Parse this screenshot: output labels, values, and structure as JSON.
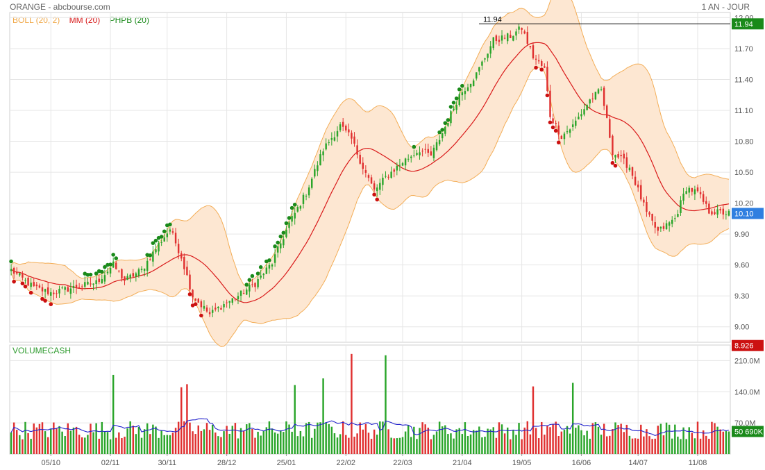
{
  "header": {
    "title": "ORANGE - abcbourse.com",
    "period": "1 AN - JOUR"
  },
  "legend": [
    {
      "label": "BOLL (20, 2)",
      "color": "#f0a848"
    },
    {
      "label": "MM (20)",
      "color": "#d81818"
    },
    {
      "label": "PHPB (20)",
      "color": "#1a8a1a"
    }
  ],
  "volume_title": "VOLUMECASH",
  "chart_data": [
    {
      "type": "candlestick",
      "title": "",
      "x_tick_labels": [
        "05/10",
        "02/11",
        "30/11",
        "28/12",
        "25/01",
        "22/02",
        "22/03",
        "21/04",
        "19/05",
        "16/06",
        "14/07",
        "11/08"
      ],
      "y_ticks": [
        9.0,
        9.3,
        9.6,
        9.9,
        10.2,
        10.5,
        10.8,
        11.1,
        11.4,
        11.7,
        12.0
      ],
      "y_tick_labels": [
        "9.00",
        "9.30",
        "9.60",
        "9.90",
        "10.20",
        "10.50",
        "10.80",
        "11.10",
        "11.40",
        "11.70",
        "12.00"
      ],
      "ylim": [
        8.85,
        12.05
      ],
      "high_label": "11.94",
      "high_value": 11.94,
      "last_label": "10.10",
      "last_value": 10.1,
      "low_label": "8.926",
      "low_value": 8.926,
      "n_bars": 254,
      "close_keyframes": [
        [
          0,
          9.55
        ],
        [
          8,
          9.38
        ],
        [
          14,
          9.33
        ],
        [
          22,
          9.38
        ],
        [
          30,
          9.43
        ],
        [
          36,
          9.6
        ],
        [
          40,
          9.45
        ],
        [
          46,
          9.55
        ],
        [
          52,
          9.8
        ],
        [
          56,
          9.95
        ],
        [
          60,
          9.68
        ],
        [
          64,
          9.3
        ],
        [
          70,
          9.12
        ],
        [
          74,
          9.2
        ],
        [
          80,
          9.3
        ],
        [
          86,
          9.42
        ],
        [
          92,
          9.62
        ],
        [
          98,
          10.0
        ],
        [
          104,
          10.3
        ],
        [
          110,
          10.72
        ],
        [
          116,
          10.95
        ],
        [
          120,
          10.82
        ],
        [
          124,
          10.55
        ],
        [
          128,
          10.32
        ],
        [
          132,
          10.45
        ],
        [
          138,
          10.6
        ],
        [
          144,
          10.72
        ],
        [
          148,
          10.66
        ],
        [
          152,
          10.88
        ],
        [
          158,
          11.25
        ],
        [
          164,
          11.45
        ],
        [
          170,
          11.78
        ],
        [
          176,
          11.82
        ],
        [
          180,
          11.9
        ],
        [
          184,
          11.62
        ],
        [
          188,
          11.5
        ],
        [
          190,
          11.05
        ],
        [
          194,
          10.85
        ],
        [
          198,
          10.95
        ],
        [
          204,
          11.2
        ],
        [
          208,
          11.3
        ],
        [
          212,
          10.7
        ],
        [
          218,
          10.55
        ],
        [
          224,
          10.1
        ],
        [
          228,
          9.92
        ],
        [
          234,
          10.05
        ],
        [
          238,
          10.35
        ],
        [
          242,
          10.3
        ],
        [
          246,
          10.12
        ],
        [
          253,
          10.1
        ]
      ],
      "bollinger": {
        "period": 20,
        "k": 2
      },
      "moving_average": {
        "period": 20
      }
    },
    {
      "type": "bar",
      "title": "",
      "y_ticks": [
        70,
        140,
        210
      ],
      "y_tick_labels": [
        "70.0M",
        "140.0M",
        "210.0M"
      ],
      "ylim": [
        0,
        245
      ],
      "last_label": "50 690K",
      "last_value": 50.69,
      "volume_base_millions": 60,
      "spikes_millions": [
        [
          36,
          178
        ],
        [
          60,
          150
        ],
        [
          62,
          157
        ],
        [
          100,
          155
        ],
        [
          110,
          170
        ],
        [
          120,
          225
        ],
        [
          132,
          222
        ],
        [
          184,
          152
        ],
        [
          198,
          160
        ]
      ]
    }
  ],
  "colors": {
    "up": "#2aa52a",
    "down": "#e03030",
    "band_fill": "#fde7d2",
    "band_line": "#f3ad56",
    "ma_line": "#d91a1a",
    "volume_avg": "#2222cc",
    "grid": "#e6e6e6",
    "last_badge": "#2f7fe0",
    "high_badge": "#1a8a1a",
    "low_badge": "#cc1111",
    "marker_up": "#1a8a1a",
    "marker_down": "#cc1111"
  }
}
